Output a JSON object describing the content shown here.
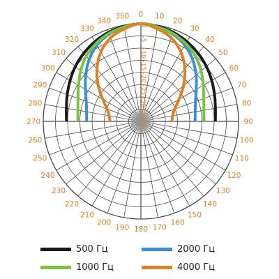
{
  "chart_data": {
    "type": "polar-line",
    "angle_ticks": [
      "0",
      "10",
      "20",
      "30",
      "40",
      "50",
      "60",
      "70",
      "80",
      "90",
      "100",
      "110",
      "120",
      "130",
      "140",
      "150",
      "160",
      "170",
      "180",
      "190",
      "200",
      "210",
      "220",
      "230",
      "240",
      "250",
      "260",
      "270",
      "280",
      "290",
      "300",
      "310",
      "320",
      "330",
      "340",
      "350"
    ],
    "radial_ticks": [
      "0",
      "-5",
      "-10",
      "-15",
      "-20",
      "-25",
      "-30",
      "-35",
      "-40"
    ],
    "r_range_db": [
      -40,
      0
    ],
    "direction": "clockwise",
    "zero_at": "top",
    "grid": true,
    "series": [
      {
        "name": "500 Гц",
        "color": "#1a1a1a",
        "angles": [
          0,
          10,
          20,
          30,
          40,
          50,
          60,
          70,
          80,
          90
        ],
        "values_db": [
          0,
          -0.5,
          -1.2,
          -2.3,
          -3.6,
          -5.0,
          -6.5,
          -7.9,
          -9.0,
          -9.5
        ]
      },
      {
        "name": "2000 Гц",
        "color": "#3a8fd9",
        "angles": [
          0,
          10,
          20,
          30,
          40,
          50,
          60,
          70,
          80,
          90
        ],
        "values_db": [
          0,
          -0.8,
          -2.0,
          -4.0,
          -7.0,
          -10.5,
          -13.8,
          -16.2,
          -17.4,
          -17.8
        ]
      },
      {
        "name": "1000 Гц",
        "color": "#7cc242",
        "angles": [
          0,
          10,
          20,
          30,
          40,
          50,
          60,
          70,
          80,
          90
        ],
        "values_db": [
          0,
          -0.7,
          -1.7,
          -3.2,
          -5.2,
          -7.8,
          -10.5,
          -12.6,
          -13.8,
          -14.2
        ]
      },
      {
        "name": "4000 Гц",
        "color": "#e07f24",
        "angles": [
          0,
          10,
          20,
          30,
          40,
          50,
          60,
          70,
          80,
          90
        ],
        "values_db": [
          0,
          -1.5,
          -3.6,
          -7.2,
          -12.0,
          -17.2,
          -22.0,
          -25.3,
          -26.8,
          -27.3
        ]
      }
    ]
  },
  "legend": {
    "items": [
      {
        "label": "500 Гц",
        "color": "#1a1a1a"
      },
      {
        "label": "2000 Гц",
        "color": "#3a8fd9"
      },
      {
        "label": "1000 Гц",
        "color": "#7cc242"
      },
      {
        "label": "4000 Гц",
        "color": "#e07f24"
      }
    ]
  },
  "colors": {
    "tick_label": "#e07f24",
    "grid": "#4a4a4a",
    "center_fill": "#9a9a9a"
  }
}
